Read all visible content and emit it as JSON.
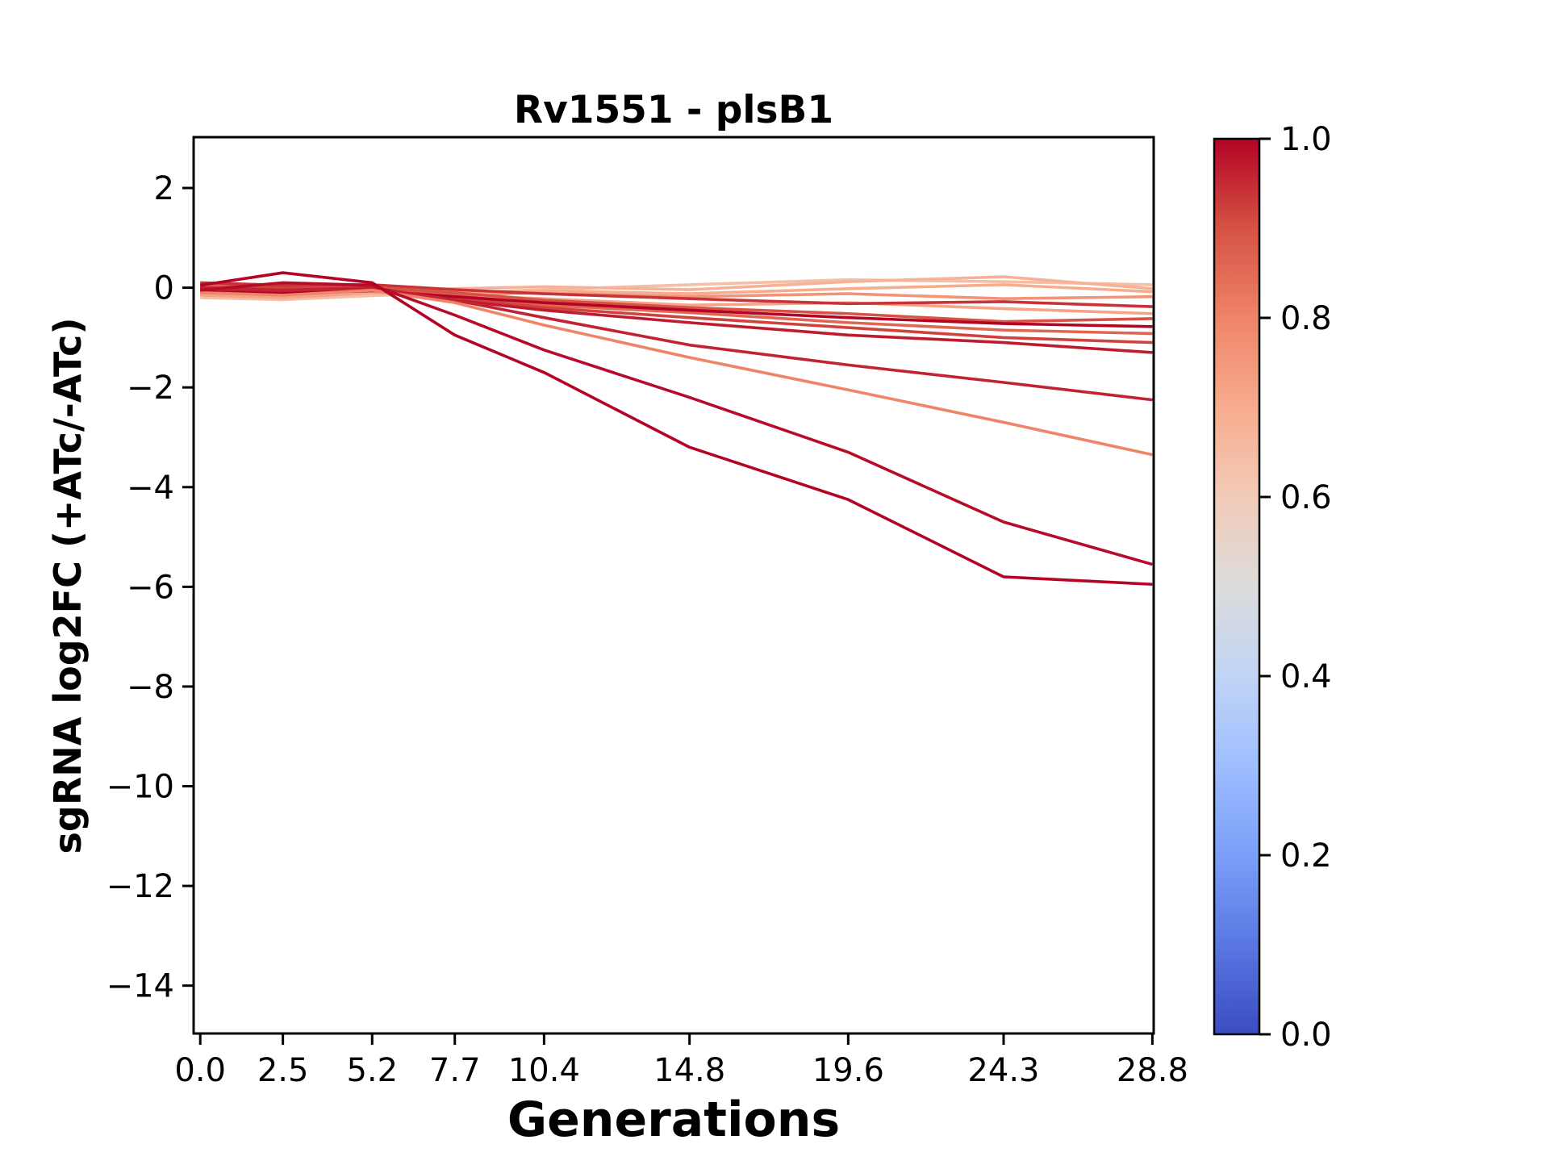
{
  "title": "Rv1551 - plsB1",
  "chart_data": {
    "type": "line",
    "title": "Rv1551 - plsB1",
    "xlabel": "Generations",
    "ylabel": "sgRNA log2FC (+ATc/-ATc)",
    "x": [
      0.0,
      2.5,
      5.2,
      7.7,
      10.4,
      14.8,
      19.6,
      24.3,
      28.8
    ],
    "xtick_labels": [
      "0.0",
      "2.5",
      "5.2",
      "7.7",
      "10.4",
      "14.8",
      "19.6",
      "24.3",
      "28.8"
    ],
    "ytick_values": [
      2,
      0,
      -2,
      -4,
      -6,
      -8,
      -10,
      -12,
      -14
    ],
    "ytick_labels": [
      "2",
      "0",
      "−2",
      "−4",
      "−6",
      "−8",
      "−10",
      "−12",
      "−14"
    ],
    "xlim": [
      -0.2,
      28.84
    ],
    "ylim": [
      -14.96,
      3.02
    ],
    "grid": false,
    "line_width": 3.6,
    "series": [
      {
        "id": "line-14",
        "colormap_value": 0.64,
        "color": "#f4bfa7",
        "values": [
          -0.2,
          -0.24,
          -0.16,
          -0.1,
          -0.04,
          0.06,
          0.16,
          0.12,
          0.06
        ]
      },
      {
        "id": "line-12",
        "colormap_value": 0.76,
        "color": "#f19478",
        "values": [
          -0.1,
          -0.06,
          -0.1,
          -0.14,
          -0.1,
          -0.18,
          -0.12,
          -0.22,
          -0.18
        ]
      },
      {
        "id": "line-15",
        "colormap_value": 0.7,
        "color": "#f7ac8e",
        "values": [
          -0.12,
          -0.16,
          -0.1,
          -0.12,
          -0.06,
          -0.12,
          -0.02,
          0.06,
          -0.08
        ]
      },
      {
        "id": "line-13",
        "colormap_value": 0.68,
        "color": "#f6b296",
        "values": [
          -0.05,
          -0.12,
          -0.06,
          -0.02,
          0.02,
          -0.04,
          0.12,
          0.22,
          -0.02
        ]
      },
      {
        "id": "line-10",
        "colormap_value": 0.72,
        "color": "#f5a489",
        "values": [
          -0.15,
          -0.2,
          -0.1,
          -0.15,
          -0.22,
          -0.35,
          -0.3,
          -0.42,
          -0.52
        ]
      },
      {
        "id": "line-7",
        "colormap_value": 0.86,
        "color": "#e06652",
        "values": [
          0.05,
          0.0,
          -0.03,
          -0.15,
          -0.35,
          -0.5,
          -0.7,
          -0.85,
          -0.92
        ]
      },
      {
        "id": "line-9",
        "colormap_value": 0.9,
        "color": "#d65244",
        "values": [
          0.0,
          0.05,
          0.0,
          -0.1,
          -0.25,
          -0.4,
          -0.52,
          -0.68,
          -0.62
        ]
      },
      {
        "id": "line-6",
        "colormap_value": 0.92,
        "color": "#cf423e",
        "values": [
          -0.05,
          0.0,
          -0.05,
          -0.2,
          -0.4,
          -0.6,
          -0.8,
          -1.0,
          -1.1
        ]
      },
      {
        "id": "line-11",
        "colormap_value": 0.94,
        "color": "#c83338",
        "values": [
          0.1,
          0.05,
          0.06,
          -0.04,
          -0.12,
          -0.22,
          -0.32,
          -0.28,
          -0.38
        ]
      },
      {
        "id": "line-5",
        "colormap_value": 0.97,
        "color": "#be1b2f",
        "values": [
          0.0,
          -0.1,
          -0.05,
          -0.25,
          -0.45,
          -0.7,
          -0.95,
          -1.1,
          -1.3
        ]
      },
      {
        "id": "line-8",
        "colormap_value": 1.0,
        "color": "#b40426",
        "values": [
          -0.08,
          -0.12,
          -0.06,
          -0.18,
          -0.3,
          -0.45,
          -0.6,
          -0.72,
          -0.78
        ]
      },
      {
        "id": "line-4",
        "colormap_value": 0.96,
        "color": "#c22332",
        "values": [
          0.0,
          -0.05,
          0.0,
          -0.25,
          -0.6,
          -1.15,
          -1.55,
          -1.9,
          -2.25
        ]
      },
      {
        "id": "line-3",
        "colormap_value": 0.8,
        "color": "#ee8468",
        "values": [
          -0.1,
          -0.15,
          -0.05,
          -0.3,
          -0.75,
          -1.4,
          -2.05,
          -2.7,
          -3.35
        ]
      },
      {
        "id": "line-2",
        "colormap_value": 0.99,
        "color": "#b70c29",
        "values": [
          -0.05,
          0.1,
          0.05,
          -0.55,
          -1.25,
          -2.2,
          -3.3,
          -4.7,
          -5.55
        ]
      },
      {
        "id": "line-1",
        "colormap_value": 1.0,
        "color": "#b40426",
        "values": [
          0.05,
          0.3,
          0.1,
          -0.95,
          -1.7,
          -3.2,
          -4.25,
          -5.8,
          -5.95
        ]
      }
    ],
    "colorbar": {
      "cmap": "coolwarm",
      "range": [
        0.0,
        1.0
      ],
      "tick_labels": [
        "1.0",
        "0.8",
        "0.6",
        "0.4",
        "0.2",
        "0.0"
      ],
      "tick_values": [
        1.0,
        0.8,
        0.6,
        0.4,
        0.2,
        0.0
      ],
      "gradient_stops_bottom_to_top": [
        "#3b4cc0",
        "#5977e3",
        "#7b9ff9",
        "#9ebeff",
        "#c0d4f5",
        "#dddcdc",
        "#f2cbb7",
        "#f7ac8e",
        "#ee8468",
        "#d65244",
        "#b40426"
      ]
    }
  }
}
